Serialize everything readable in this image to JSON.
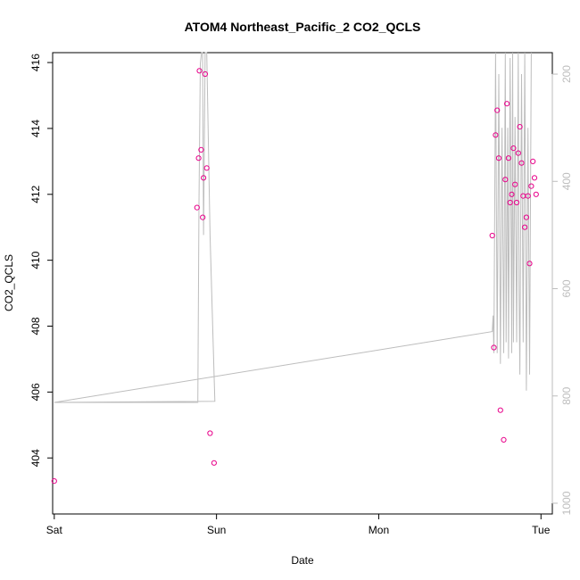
{
  "chart_data": {
    "type": "scatter",
    "title": "ATOM4 Northeast_Pacific_2 CO2_QCLS",
    "xlabel": "Date",
    "ylabel": "CO2_QCLS",
    "x_ticks": [
      "Sat",
      "Sun",
      "Mon",
      "Tue"
    ],
    "xlim": [
      -0.01,
      3.07
    ],
    "ylim": [
      402.3,
      416.3
    ],
    "y_ticks": [
      404,
      406,
      408,
      410,
      412,
      414,
      416
    ],
    "y2_ticks": [
      200,
      400,
      600,
      800,
      1000
    ],
    "y2lim": [
      1020,
      160
    ],
    "grid": false,
    "series": [
      {
        "marker": "open-circle",
        "color": "#e8008a",
        "x": [
          0.0,
          0.88,
          0.89,
          0.895,
          0.905,
          0.915,
          0.92,
          0.93,
          0.94,
          0.96,
          0.985,
          2.7,
          2.71,
          2.72,
          2.73,
          2.74,
          2.75,
          2.77,
          2.78,
          2.79,
          2.8,
          2.81,
          2.82,
          2.83,
          2.84,
          2.85,
          2.86,
          2.87,
          2.88,
          2.89,
          2.9,
          2.91,
          2.92,
          2.93,
          2.94,
          2.95,
          2.96,
          2.97
        ],
        "y": [
          403.3,
          411.6,
          413.1,
          415.75,
          413.35,
          411.3,
          412.5,
          415.65,
          412.8,
          404.75,
          403.85,
          410.75,
          407.35,
          413.8,
          414.55,
          413.1,
          405.45,
          404.55,
          412.45,
          414.75,
          413.1,
          411.75,
          412.0,
          413.4,
          412.3,
          411.75,
          413.25,
          414.05,
          412.95,
          411.95,
          411.0,
          411.3,
          411.95,
          409.9,
          412.25,
          413.0,
          412.5,
          412.0
        ]
      },
      {
        "name": "",
        "type": "line",
        "axis": "right",
        "color": "#bdbdbd",
        "x": [
          0.0,
          0.885,
          0.892,
          0.9,
          0.908,
          0.914,
          0.92,
          0.93,
          0.94,
          0.96,
          0.985,
          0.99,
          0.0,
          2.7,
          2.705,
          2.71,
          2.72,
          2.73,
          2.74,
          2.75,
          2.76,
          2.77,
          2.78,
          2.785,
          2.795,
          2.8,
          2.81,
          2.82,
          2.825,
          2.83,
          2.84,
          2.85,
          2.86,
          2.865,
          2.87,
          2.88,
          2.89,
          2.9,
          2.91,
          2.92,
          2.93,
          2.94
        ],
        "y": [
          812,
          812,
          440,
          180,
          160,
          160,
          500,
          150,
          150,
          500,
          760,
          810,
          812,
          680,
          650,
          720,
          160,
          720,
          200,
          740,
          300,
          720,
          160,
          700,
          300,
          730,
          170,
          720,
          160,
          700,
          280,
          700,
          160,
          600,
          760,
          200,
          700,
          160,
          790,
          300,
          760,
          160
        ]
      }
    ]
  }
}
